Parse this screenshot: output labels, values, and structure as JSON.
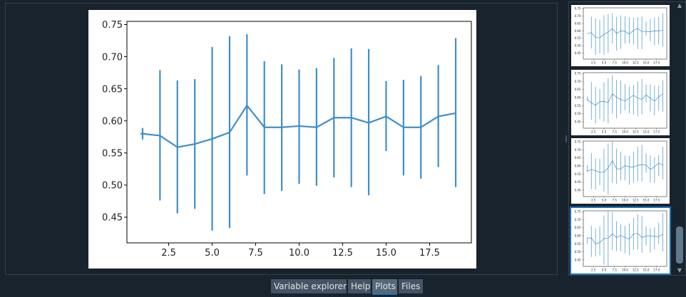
{
  "tabs": [
    {
      "label": "Variable explorer",
      "active": false
    },
    {
      "label": "Help",
      "active": false
    },
    {
      "label": "Plots",
      "active": true
    },
    {
      "label": "Files",
      "active": false
    }
  ],
  "colors": {
    "line": "#3f8fc9",
    "accent": "#1a72bb",
    "background": "#19232d"
  },
  "chart_data": {
    "type": "line",
    "title": "",
    "xlabel": "",
    "ylabel": "",
    "xlim": [
      0.1,
      19.9
    ],
    "ylim": [
      0.41,
      0.755
    ],
    "xticks": [
      "2.5",
      "5.0",
      "7.5",
      "10.0",
      "12.5",
      "15.0",
      "17.5"
    ],
    "yticks": [
      "0.45",
      "0.50",
      "0.55",
      "0.60",
      "0.65",
      "0.70",
      "0.75"
    ],
    "grid": false,
    "series": [
      {
        "x": [
          1,
          2,
          3,
          4,
          5,
          6,
          7,
          8,
          9,
          10,
          11,
          12,
          13,
          14,
          15,
          16,
          17,
          18,
          19
        ],
        "y": [
          0.58,
          0.577,
          0.559,
          0.564,
          0.572,
          0.582,
          0.624,
          0.59,
          0.59,
          0.592,
          0.59,
          0.605,
          0.605,
          0.597,
          0.607,
          0.59,
          0.59,
          0.607,
          0.612
        ],
        "err_low": [
          0.571,
          0.476,
          0.456,
          0.463,
          0.429,
          0.433,
          0.515,
          0.486,
          0.491,
          0.502,
          0.499,
          0.512,
          0.497,
          0.484,
          0.553,
          0.515,
          0.51,
          0.528,
          0.497
        ],
        "err_high": [
          0.589,
          0.679,
          0.663,
          0.665,
          0.715,
          0.732,
          0.735,
          0.693,
          0.688,
          0.68,
          0.682,
          0.698,
          0.713,
          0.712,
          0.662,
          0.664,
          0.67,
          0.687,
          0.729
        ]
      }
    ]
  }
}
